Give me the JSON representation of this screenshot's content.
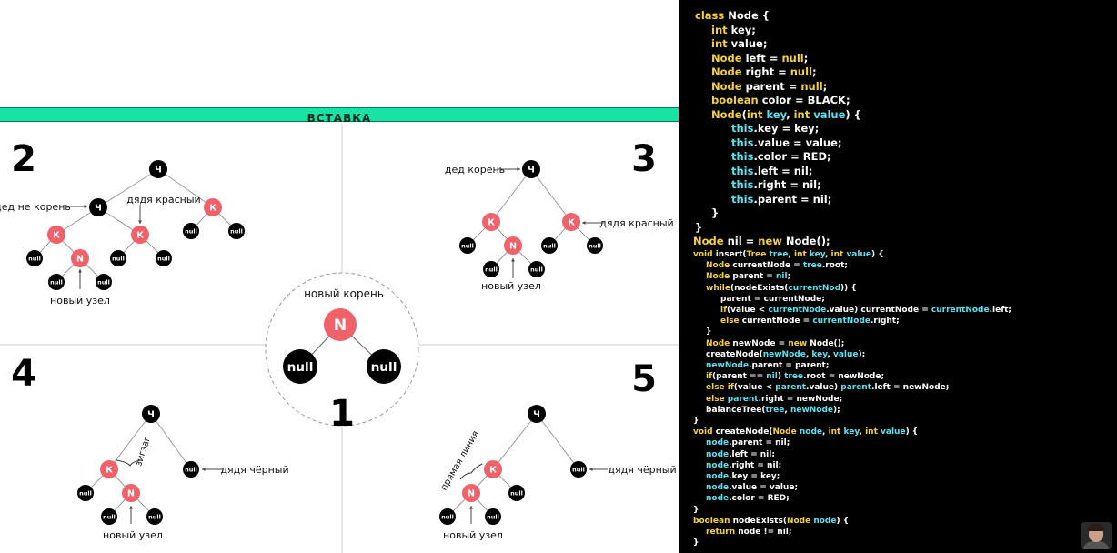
{
  "banner": "ВСТАВКА",
  "node_labels": {
    "grandpa": "Ч",
    "red": "К",
    "new": "N",
    "null": "null"
  },
  "panel1": {
    "number": "1",
    "caption": "новый корень"
  },
  "panel2": {
    "number": "2",
    "label_grandpa": "дед не корень",
    "label_uncle": "дядя красный",
    "label_new": "новый узел"
  },
  "panel3": {
    "number": "3",
    "label_grandpa": "дед корень",
    "label_uncle": "дядя красный",
    "label_new": "новый узел"
  },
  "panel4": {
    "number": "4",
    "label_zigzag": "зигзаг",
    "label_uncle": "дядя чёрный",
    "label_new": "новый узел"
  },
  "panel5": {
    "number": "5",
    "label_line": "прямая линия",
    "label_uncle": "дядя чёрный",
    "label_new": "новый узел"
  },
  "colors": {
    "banner": "#17e3a4",
    "red_node": "#f0626a",
    "black_node": "#000000",
    "code_bg": "#000000",
    "code_type": "#f4d03f",
    "code_var": "#5ee0f0",
    "code_text": "#ffffff"
  },
  "code": {
    "class_lines": [
      [
        [
          "class ",
          "y"
        ],
        [
          "Node",
          "w"
        ],
        [
          " {",
          "w"
        ]
      ],
      [
        [
          "int ",
          "y"
        ],
        [
          "key;",
          "w"
        ]
      ],
      [
        [
          "int ",
          "y"
        ],
        [
          "value;",
          "w"
        ]
      ],
      [
        [
          "Node ",
          "y"
        ],
        [
          "left",
          "w"
        ],
        [
          " = ",
          "w"
        ],
        [
          "null",
          "y"
        ],
        [
          ";",
          "w"
        ]
      ],
      [
        [
          "Node ",
          "y"
        ],
        [
          "right",
          "w"
        ],
        [
          " = ",
          "w"
        ],
        [
          "null",
          "y"
        ],
        [
          ";",
          "w"
        ]
      ],
      [
        [
          "Node ",
          "y"
        ],
        [
          "parent",
          "w"
        ],
        [
          " = ",
          "w"
        ],
        [
          "null",
          "y"
        ],
        [
          ";",
          "w"
        ]
      ],
      [
        [
          "boolean ",
          "y"
        ],
        [
          "color = BLACK;",
          "w"
        ]
      ],
      [
        [
          "Node",
          "y"
        ],
        [
          "(",
          "w"
        ],
        [
          "int ",
          "y"
        ],
        [
          "key",
          "c"
        ],
        [
          ", ",
          "w"
        ],
        [
          "int ",
          "y"
        ],
        [
          "value",
          "c"
        ],
        [
          ") {",
          "w"
        ]
      ],
      [
        [
          "this",
          "c"
        ],
        [
          ".key = key;",
          "w"
        ]
      ],
      [
        [
          "this",
          "c"
        ],
        [
          ".value = value;",
          "w"
        ]
      ],
      [
        [
          "this",
          "c"
        ],
        [
          ".color = RED;",
          "w"
        ]
      ],
      [
        [
          "this",
          "c"
        ],
        [
          ".left = nil;",
          "w"
        ]
      ],
      [
        [
          "this",
          "c"
        ],
        [
          ".right = nil;",
          "w"
        ]
      ],
      [
        [
          "this",
          "c"
        ],
        [
          ".parent = nil;",
          "w"
        ]
      ],
      [
        [
          "}",
          "w"
        ]
      ],
      [
        [
          "}",
          "w"
        ]
      ],
      [
        [
          "Node ",
          "y"
        ],
        [
          "nil = ",
          "w"
        ],
        [
          "new ",
          "y"
        ],
        [
          "Node();",
          "w"
        ]
      ]
    ],
    "method_lines": [
      [
        [
          "void ",
          "y"
        ],
        [
          "insert(",
          "w"
        ],
        [
          "Tree ",
          "y"
        ],
        [
          "tree",
          "c"
        ],
        [
          ", ",
          "w"
        ],
        [
          "int ",
          "y"
        ],
        [
          "key",
          "c"
        ],
        [
          ", ",
          "w"
        ],
        [
          "int ",
          "y"
        ],
        [
          "value",
          "c"
        ],
        [
          ") {",
          "w"
        ]
      ],
      [
        [
          "Node ",
          "y"
        ],
        [
          "currentNode = ",
          "w"
        ],
        [
          "tree",
          "c"
        ],
        [
          ".root;",
          "w"
        ]
      ],
      [
        [
          "Node ",
          "y"
        ],
        [
          "parent = ",
          "w"
        ],
        [
          "nil",
          "c"
        ],
        [
          ";",
          "w"
        ]
      ],
      [
        [
          "while",
          "y"
        ],
        [
          "(nodeExists(",
          "w"
        ],
        [
          "currentNod",
          "c"
        ],
        [
          ")) {",
          "w"
        ]
      ],
      [
        [
          "parent = currentNode;",
          "w"
        ]
      ],
      [
        [
          "if",
          "y"
        ],
        [
          "(value < ",
          "w"
        ],
        [
          "currentNode",
          "c"
        ],
        [
          ".value) currentNode = ",
          "w"
        ],
        [
          "currentNode",
          "c"
        ],
        [
          ".left;",
          "w"
        ]
      ],
      [
        [
          "else ",
          "y"
        ],
        [
          "currentNode = ",
          "w"
        ],
        [
          "currentNode",
          "c"
        ],
        [
          ".right;",
          "w"
        ]
      ],
      [
        [
          "}",
          "w"
        ]
      ],
      [
        [
          "Node ",
          "y"
        ],
        [
          "newNode = ",
          "w"
        ],
        [
          "new ",
          "y"
        ],
        [
          "Node();",
          "w"
        ]
      ],
      [
        [
          "createNode(",
          "w"
        ],
        [
          "newNode",
          "c"
        ],
        [
          ", ",
          "w"
        ],
        [
          "key",
          "c"
        ],
        [
          ", ",
          "w"
        ],
        [
          "value",
          "c"
        ],
        [
          ");",
          "w"
        ]
      ],
      [
        [
          "newNode",
          "c"
        ],
        [
          ".parent = parent;",
          "w"
        ]
      ],
      [
        [
          "if",
          "y"
        ],
        [
          "(parent == ",
          "w"
        ],
        [
          "nil",
          "c"
        ],
        [
          ") ",
          "w"
        ],
        [
          "tree",
          "c"
        ],
        [
          ".root = newNode;",
          "w"
        ]
      ],
      [
        [
          "else if",
          "y"
        ],
        [
          "(value < ",
          "w"
        ],
        [
          "parent",
          "c"
        ],
        [
          ".value) ",
          "w"
        ],
        [
          "parent",
          "c"
        ],
        [
          ".left = newNode;",
          "w"
        ]
      ],
      [
        [
          "else ",
          "y"
        ],
        [
          "parent",
          "c"
        ],
        [
          ".right = newNode;",
          "w"
        ]
      ],
      [
        [
          "balanceTree(",
          "w"
        ],
        [
          "tree",
          "c"
        ],
        [
          ", ",
          "w"
        ],
        [
          "newNode",
          "c"
        ],
        [
          ");",
          "w"
        ]
      ],
      [
        [
          "}",
          "w"
        ]
      ],
      [
        [
          "void ",
          "y"
        ],
        [
          "createNode(",
          "w"
        ],
        [
          "Node ",
          "y"
        ],
        [
          "node",
          "c"
        ],
        [
          ", ",
          "w"
        ],
        [
          "int ",
          "y"
        ],
        [
          "key",
          "c"
        ],
        [
          ", ",
          "w"
        ],
        [
          "int ",
          "y"
        ],
        [
          "value",
          "c"
        ],
        [
          ") {",
          "w"
        ]
      ],
      [
        [
          "node",
          "c"
        ],
        [
          ".parent = nil;",
          "w"
        ]
      ],
      [
        [
          "node",
          "c"
        ],
        [
          ".left = nil;",
          "w"
        ]
      ],
      [
        [
          "node",
          "c"
        ],
        [
          ".right = nil;",
          "w"
        ]
      ],
      [
        [
          "node",
          "c"
        ],
        [
          ".key = key;",
          "w"
        ]
      ],
      [
        [
          "node",
          "c"
        ],
        [
          ".value = value;",
          "w"
        ]
      ],
      [
        [
          "node",
          "c"
        ],
        [
          ".color = RED;",
          "w"
        ]
      ],
      [
        [
          "}",
          "w"
        ]
      ],
      [
        [
          "boolean ",
          "y"
        ],
        [
          "nodeExists(",
          "w"
        ],
        [
          "Node ",
          "y"
        ],
        [
          "node",
          "c"
        ],
        [
          ") {",
          "w"
        ]
      ],
      [
        [
          "return ",
          "y"
        ],
        [
          "node != nil;",
          "w"
        ]
      ],
      [
        [
          "}",
          "w"
        ]
      ]
    ]
  }
}
